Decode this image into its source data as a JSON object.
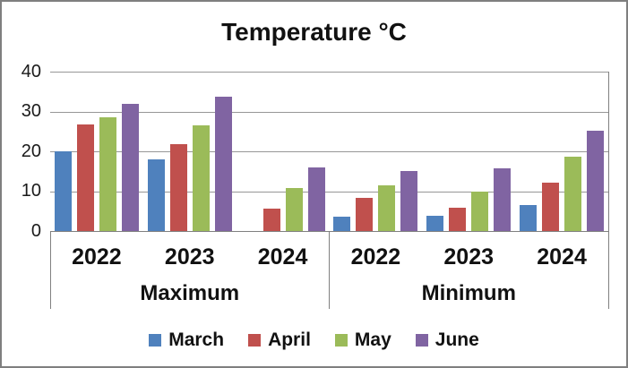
{
  "title": "Temperature °C",
  "chart_data": {
    "type": "bar",
    "title": "Temperature °C",
    "xlabel": "",
    "ylabel": "",
    "ylim": [
      0,
      40
    ],
    "yticks": [
      40,
      30,
      20,
      10,
      0
    ],
    "grid": true,
    "legend_position": "bottom",
    "sections": [
      {
        "label": "Maximum",
        "categories": [
          "2022",
          "2023",
          "2024"
        ]
      },
      {
        "label": "Minimum",
        "categories": [
          "2022",
          "2023",
          "2024"
        ]
      }
    ],
    "series": [
      {
        "name": "March",
        "color": "#4F81BD",
        "values": [
          [
            20.0,
            18.0,
            null
          ],
          [
            3.5,
            3.8,
            6.6
          ]
        ]
      },
      {
        "name": "April",
        "color": "#C0504D",
        "values": [
          [
            26.7,
            21.9,
            5.7
          ],
          [
            8.4,
            5.9,
            12.1
          ]
        ]
      },
      {
        "name": "May",
        "color": "#9BBB59",
        "values": [
          [
            28.5,
            26.6,
            10.8
          ],
          [
            11.5,
            10.0,
            18.7
          ]
        ]
      },
      {
        "name": "June",
        "color": "#8064A2",
        "values": [
          [
            31.9,
            33.8,
            15.9
          ],
          [
            15.0,
            15.8,
            25.2
          ]
        ]
      }
    ],
    "colors": {
      "gridline": "#979797",
      "axis": "#808080",
      "frame_border": "#7f7f7f",
      "background": "#ffffff",
      "text": "#111111"
    }
  }
}
